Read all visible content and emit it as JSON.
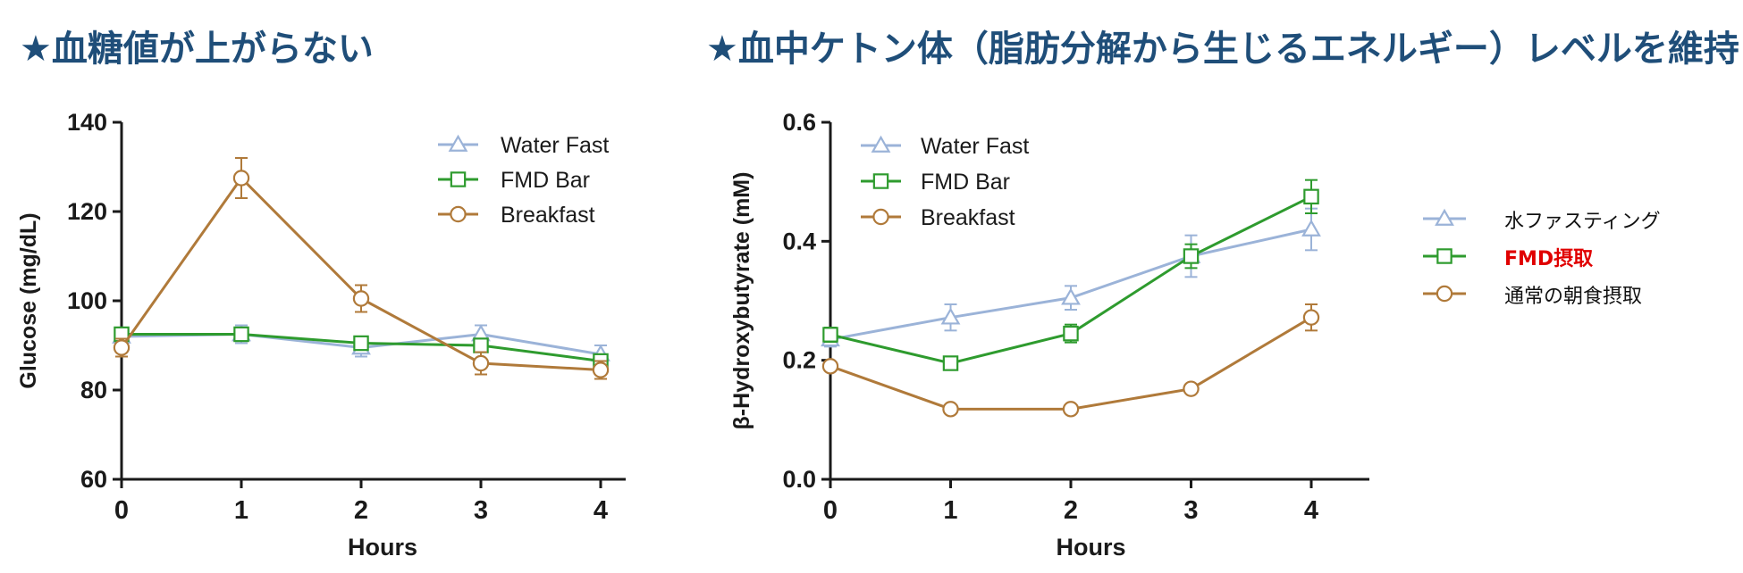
{
  "headings": {
    "left": "★血糖値が上がらない",
    "right": "★血中ケトン体（脂肪分解から生じるエネルギー）レベルを維持"
  },
  "colors": {
    "heading": "#1f4e79",
    "water_fast": "#9bb3d8",
    "fmd_bar": "#2e9b2e",
    "breakfast": "#b07a3a",
    "jp_fmd_label": "#e00000"
  },
  "chart_data": [
    {
      "type": "line",
      "title": "",
      "xlabel": "Hours",
      "ylabel": "Glucose (mg/dL)",
      "x": [
        0,
        1,
        2,
        3,
        4
      ],
      "xticks": [
        "0",
        "1",
        "2",
        "3",
        "4"
      ],
      "ylim": [
        60,
        140
      ],
      "yticks": [
        "60",
        "80",
        "100",
        "120",
        "140"
      ],
      "legend_position": "top-right",
      "series": [
        {
          "name": "Water Fast",
          "marker": "triangle",
          "color_key": "water_fast",
          "values": [
            92,
            92.5,
            89.5,
            92.5,
            88
          ],
          "errors": [
            1.5,
            2,
            2,
            2,
            2
          ]
        },
        {
          "name": "FMD Bar",
          "marker": "square",
          "color_key": "fmd_bar",
          "values": [
            92.5,
            92.5,
            90.5,
            90,
            86.5
          ],
          "errors": [
            1.5,
            1.5,
            1.5,
            1.5,
            1.5
          ]
        },
        {
          "name": "Breakfast",
          "marker": "circle",
          "color_key": "breakfast",
          "values": [
            89.5,
            127.5,
            100.5,
            86,
            84.5
          ],
          "errors": [
            2,
            4.5,
            3,
            2.5,
            2
          ]
        }
      ]
    },
    {
      "type": "line",
      "title": "",
      "xlabel": "Hours",
      "ylabel": "β-Hydroxybutyrate (mM)",
      "x": [
        0,
        1,
        2,
        3,
        4
      ],
      "xticks": [
        "0",
        "1",
        "2",
        "3",
        "4"
      ],
      "ylim": [
        0,
        0.6
      ],
      "yticks": [
        "0.0",
        "0.2",
        "0.4",
        "0.6"
      ],
      "legend_position": "top-left",
      "series": [
        {
          "name": "Water Fast",
          "marker": "triangle",
          "color_key": "water_fast",
          "values": [
            0.235,
            0.272,
            0.305,
            0.375,
            0.42
          ],
          "errors": [
            0.012,
            0.022,
            0.02,
            0.035,
            0.035
          ]
        },
        {
          "name": "FMD Bar",
          "marker": "square",
          "color_key": "fmd_bar",
          "values": [
            0.243,
            0.195,
            0.245,
            0.375,
            0.475
          ],
          "errors": [
            0.012,
            0.008,
            0.015,
            0.02,
            0.028
          ]
        },
        {
          "name": "Breakfast",
          "marker": "circle",
          "color_key": "breakfast",
          "values": [
            0.19,
            0.118,
            0.118,
            0.152,
            0.272
          ],
          "errors": [
            0.006,
            0.004,
            0.004,
            0.006,
            0.022
          ]
        }
      ]
    }
  ],
  "jp_legend": [
    {
      "label": "水ファスティング",
      "color_key": "water_fast",
      "marker": "triangle"
    },
    {
      "label": "FMD摂取",
      "color_key": "fmd_bar",
      "marker": "square"
    },
    {
      "label": "通常の朝食摂取",
      "color_key": "breakfast",
      "marker": "circle"
    }
  ]
}
